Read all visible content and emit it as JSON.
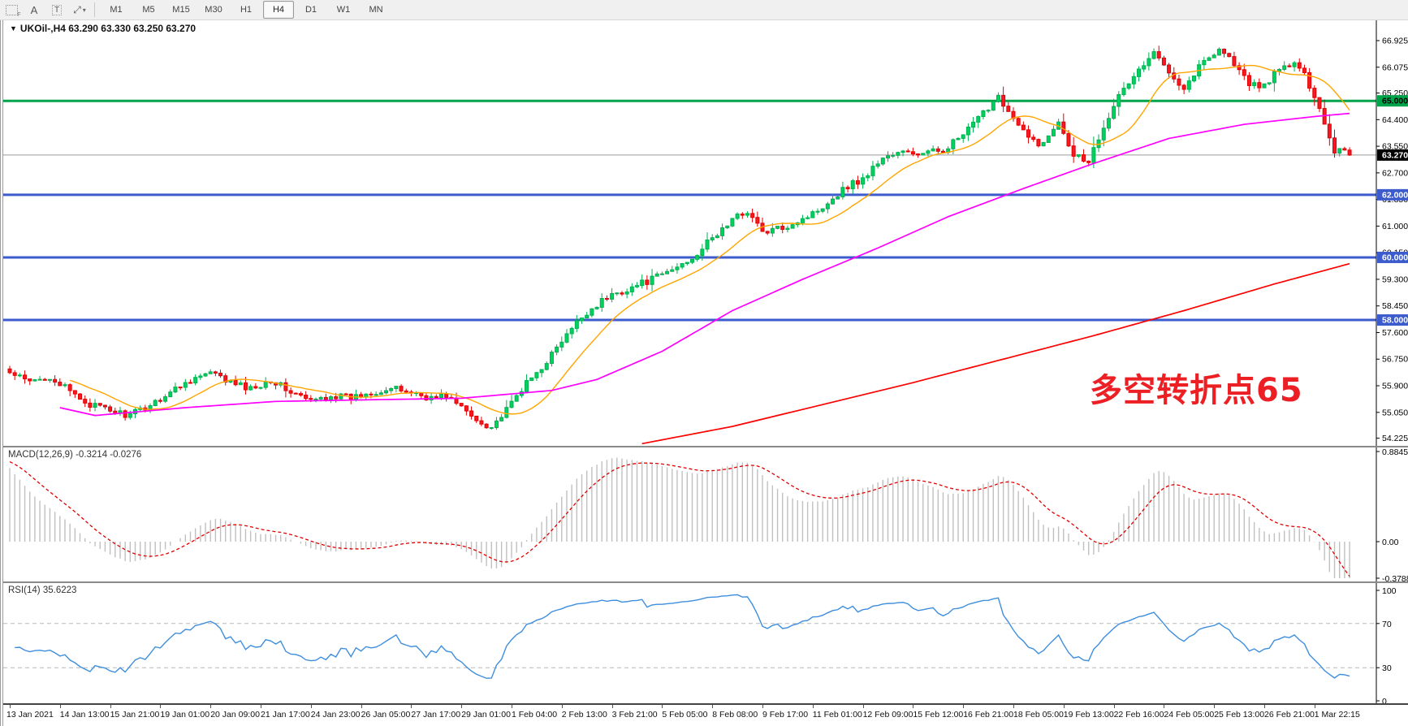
{
  "toolbar": {
    "tools": [
      {
        "name": "grid-tool",
        "glyph": "grid-f"
      },
      {
        "name": "font-tool",
        "glyph": "A"
      },
      {
        "name": "text-tool",
        "glyph": "T"
      },
      {
        "name": "cursor-modes",
        "glyph": "arrows"
      }
    ],
    "timeframes": [
      "M1",
      "M5",
      "M15",
      "M30",
      "H1",
      "H4",
      "D1",
      "W1",
      "MN"
    ],
    "active_timeframe": "H4"
  },
  "symbol_line": "UKOil-,H4  63.290 63.330 63.250 63.270",
  "annotation": {
    "text": "多空转折点65",
    "color": "#ec2024"
  },
  "macd_panel": {
    "label": "MACD(12,26,9)",
    "values": "-0.3214 -0.0276",
    "axis_labels": [
      "0.8845",
      "0.00",
      "-0.3788"
    ]
  },
  "rsi_panel": {
    "label": "RSI(14)",
    "value": "35.6223",
    "axis_labels": [
      "100",
      "70",
      "30",
      "0"
    ]
  },
  "chart_data": {
    "type": "candlestick",
    "symbol": "UKOil-",
    "timeframe": "H4",
    "ohlc_display": {
      "open": 63.29,
      "high": 63.33,
      "low": 63.25,
      "close": 63.27
    },
    "candle_count": 268,
    "up_color": "#00d25f",
    "up_border": "#00b050",
    "down_color": "#f51825",
    "down_border": "#e00000",
    "close_anchors": [
      [
        0,
        56.3
      ],
      [
        4,
        56.0
      ],
      [
        8,
        56.2
      ],
      [
        12,
        55.7
      ],
      [
        16,
        55.3
      ],
      [
        20,
        55.1
      ],
      [
        24,
        54.95
      ],
      [
        28,
        55.3
      ],
      [
        32,
        55.7
      ],
      [
        36,
        56.1
      ],
      [
        40,
        56.3
      ],
      [
        44,
        56.0
      ],
      [
        48,
        55.8
      ],
      [
        52,
        56.1
      ],
      [
        56,
        55.7
      ],
      [
        60,
        55.4
      ],
      [
        64,
        55.6
      ],
      [
        68,
        55.5
      ],
      [
        72,
        55.7
      ],
      [
        76,
        55.8
      ],
      [
        80,
        55.7
      ],
      [
        84,
        55.5
      ],
      [
        87,
        55.6
      ],
      [
        90,
        55.2
      ],
      [
        93,
        54.8
      ],
      [
        96,
        54.6
      ],
      [
        99,
        55.1
      ],
      [
        102,
        55.8
      ],
      [
        105,
        56.3
      ],
      [
        108,
        56.9
      ],
      [
        111,
        57.5
      ],
      [
        114,
        58.1
      ],
      [
        117,
        58.5
      ],
      [
        120,
        58.8
      ],
      [
        124,
        59.05
      ],
      [
        128,
        59.3
      ],
      [
        132,
        59.6
      ],
      [
        136,
        60.0
      ],
      [
        140,
        60.6
      ],
      [
        144,
        61.2
      ],
      [
        147,
        61.5
      ],
      [
        150,
        60.8
      ],
      [
        153,
        60.9
      ],
      [
        156,
        61.1
      ],
      [
        160,
        61.4
      ],
      [
        164,
        61.9
      ],
      [
        167,
        62.3
      ],
      [
        170,
        62.5
      ],
      [
        174,
        63.2
      ],
      [
        178,
        63.35
      ],
      [
        182,
        63.3
      ],
      [
        186,
        63.45
      ],
      [
        190,
        63.9
      ],
      [
        194,
        64.6
      ],
      [
        197,
        65.2
      ],
      [
        200,
        64.4
      ],
      [
        203,
        63.8
      ],
      [
        206,
        63.6
      ],
      [
        209,
        64.4
      ],
      [
        212,
        63.3
      ],
      [
        215,
        63.1
      ],
      [
        218,
        64.2
      ],
      [
        220,
        64.9
      ],
      [
        224,
        65.8
      ],
      [
        228,
        66.5
      ],
      [
        231,
        66.0
      ],
      [
        234,
        65.4
      ],
      [
        237,
        66.1
      ],
      [
        241,
        66.7
      ],
      [
        244,
        66.2
      ],
      [
        247,
        65.5
      ],
      [
        250,
        65.5
      ],
      [
        253,
        66.0
      ],
      [
        256,
        66.2
      ],
      [
        258,
        65.8
      ],
      [
        260,
        65.2
      ],
      [
        262,
        64.3
      ],
      [
        264,
        63.4
      ],
      [
        266,
        63.5
      ],
      [
        267,
        63.27
      ]
    ],
    "ma_fast": {
      "name": "MA fast",
      "color": "#ffa500",
      "period": 13
    },
    "ma_mid": {
      "name": "MA mid",
      "color": "#ff00ff",
      "anchors": [
        [
          10,
          55.2
        ],
        [
          17,
          54.95
        ],
        [
          35,
          55.2
        ],
        [
          53,
          55.4
        ],
        [
          71,
          55.45
        ],
        [
          90,
          55.5
        ],
        [
          108,
          55.75
        ],
        [
          117,
          56.1
        ],
        [
          130,
          57.0
        ],
        [
          144,
          58.3
        ],
        [
          158,
          59.3
        ],
        [
          173,
          60.3
        ],
        [
          187,
          61.3
        ],
        [
          202,
          62.2
        ],
        [
          216,
          63.0
        ],
        [
          231,
          63.8
        ],
        [
          246,
          64.25
        ],
        [
          260,
          64.5
        ],
        [
          267,
          64.6
        ]
      ]
    },
    "ma_slow": {
      "name": "MA slow",
      "color": "#ff0000",
      "anchors": [
        [
          126,
          54.05
        ],
        [
          144,
          54.6
        ],
        [
          162,
          55.3
        ],
        [
          180,
          56.0
        ],
        [
          198,
          56.75
        ],
        [
          216,
          57.5
        ],
        [
          234,
          58.3
        ],
        [
          252,
          59.15
        ],
        [
          267,
          59.8
        ]
      ]
    },
    "price_axis_ticks": [
      66.925,
      66.075,
      65.25,
      64.4,
      63.55,
      62.7,
      61.85,
      61.0,
      60.15,
      59.3,
      58.45,
      57.6,
      56.75,
      55.9,
      55.05,
      54.225
    ],
    "levels": [
      {
        "price": 65.0,
        "label": "65.000",
        "color": "#00a44a",
        "width": 3,
        "text_color": "#000"
      },
      {
        "price": 62.0,
        "label": "62.000",
        "color": "#3c5bcc",
        "width": 3,
        "text_color": "#fff"
      },
      {
        "price": 60.0,
        "label": "60.000",
        "color": "#3c5bcc",
        "width": 3,
        "text_color": "#fff"
      },
      {
        "price": 58.0,
        "label": "58.000",
        "color": "#3c5bcc",
        "width": 3,
        "text_color": "#fff"
      }
    ],
    "current_price": {
      "price": 63.27,
      "label": "63.270",
      "line_color": "#9a9a9a",
      "box_color": "#000",
      "text_color": "#fff"
    },
    "price_range_top": 67.57,
    "price_range_bottom": 54.0,
    "macd": {
      "params": [
        12,
        26,
        9
      ],
      "line_value": -0.3214,
      "signal_value": -0.0276,
      "axis_max": 0.8845,
      "axis_min": -0.3788,
      "hist_color": "#c0c0c0",
      "signal_color": "#e00000"
    },
    "rsi": {
      "period": 14,
      "value": 35.6223,
      "axis": [
        0,
        100
      ],
      "levels": [
        70,
        30
      ],
      "line_color": "#3e8ede",
      "level_color": "#b8b8b8"
    },
    "x_labels": [
      "13 Jan 2021",
      "14 Jan 13:00",
      "15 Jan 21:00",
      "19 Jan 01:00",
      "20 Jan 09:00",
      "21 Jan 17:00",
      "24 Jan 23:00",
      "26 Jan 05:00",
      "27 Jan 17:00",
      "29 Jan 01:00",
      "1 Feb 04:00",
      "2 Feb 13:00",
      "3 Feb 21:00",
      "5 Feb 05:00",
      "8 Feb 08:00",
      "9 Feb 17:00",
      "11 Feb 01:00",
      "12 Feb 09:00",
      "15 Feb 12:00",
      "16 Feb 21:00",
      "18 Feb 05:00",
      "19 Feb 13:00",
      "22 Feb 16:00",
      "24 Feb 05:00",
      "25 Feb 13:00",
      "26 Feb 21:00",
      "1 Mar 22:15"
    ],
    "bars_per_label": 10
  }
}
